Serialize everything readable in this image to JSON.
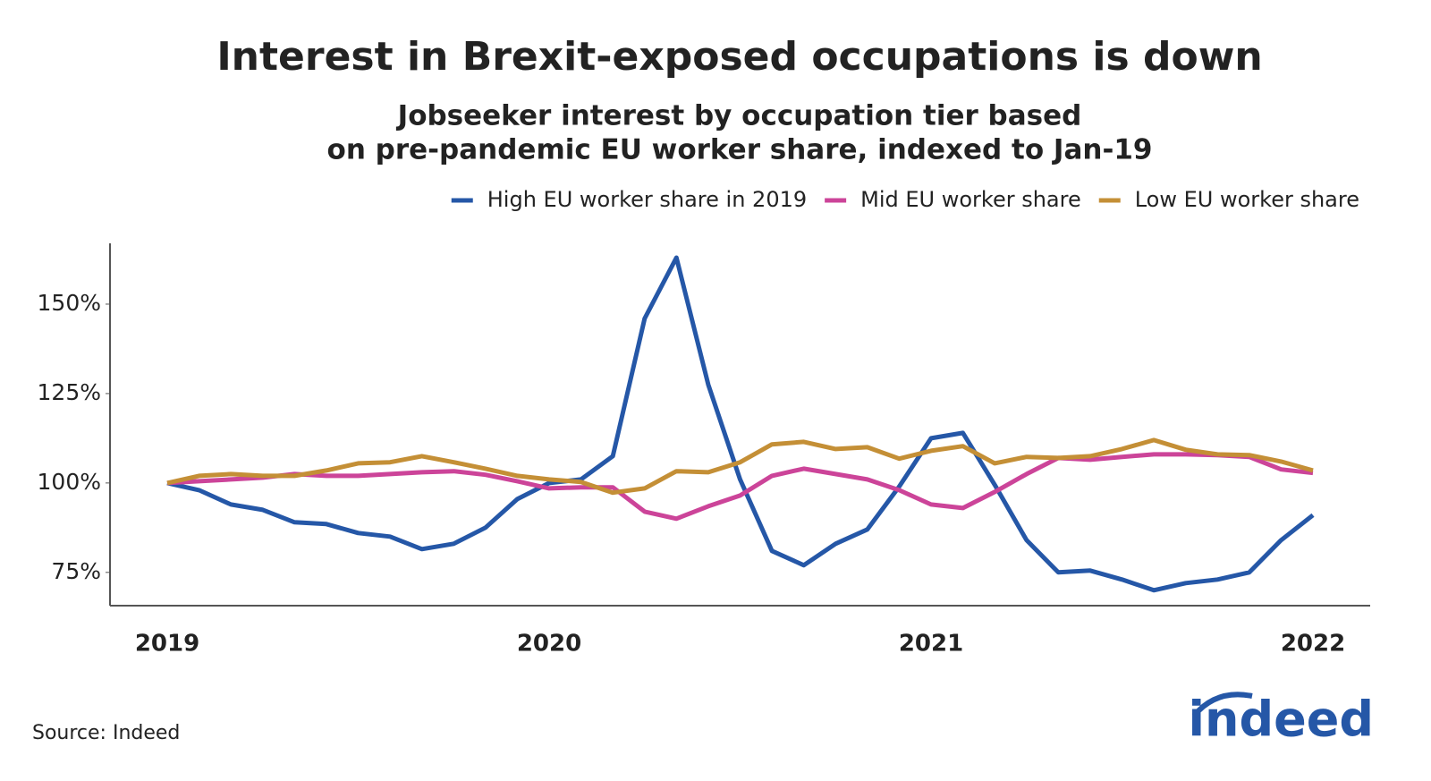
{
  "chart_data": {
    "type": "line",
    "title": "Interest in Brexit-exposed occupations is down",
    "subtitle": [
      "Jobseeker interest by occupation tier based",
      "on pre-pandemic EU worker share, indexed to Jan-19"
    ],
    "categories": [
      "2019",
      null,
      null,
      null,
      null,
      null,
      null,
      null,
      null,
      null,
      null,
      null,
      "2020",
      null,
      null,
      null,
      null,
      null,
      null,
      null,
      null,
      null,
      null,
      null,
      "2021",
      null,
      null,
      null,
      null,
      null,
      null,
      null,
      null,
      null,
      null,
      null,
      "2022"
    ],
    "series": [
      {
        "name": "High EU worker share in 2019",
        "color": "#2557a7",
        "values": [
          100,
          98,
          94,
          92.5,
          89,
          88.5,
          86,
          85,
          81.5,
          83,
          87.5,
          95.5,
          100,
          101,
          107.5,
          146,
          163,
          127.5,
          101,
          81,
          77,
          83,
          87,
          99,
          112.5,
          114,
          99.5,
          84,
          75,
          75.5,
          73,
          70,
          72,
          73,
          75,
          84,
          91
        ]
      },
      {
        "name": "Mid EU worker share",
        "color": "#cc4499",
        "values": [
          100,
          100.5,
          101,
          101.5,
          102.5,
          102,
          102,
          102.5,
          103,
          103.3,
          102.3,
          100.5,
          98.5,
          98.8,
          98.8,
          92,
          90,
          93.5,
          96.5,
          102,
          104,
          102.5,
          101,
          98,
          94,
          93,
          97.5,
          102.5,
          107,
          106.5,
          107.3,
          108,
          108,
          107.8,
          107.3,
          103.8,
          102.8
        ]
      },
      {
        "name": "Low EU worker share",
        "color": "#c48f36",
        "values": [
          100,
          102,
          102.5,
          102,
          102,
          103.5,
          105.5,
          105.8,
          107.5,
          105.8,
          104,
          102,
          101,
          100.3,
          97.3,
          98.5,
          103.3,
          103,
          105.8,
          110.8,
          111.5,
          109.5,
          110,
          106.8,
          109,
          110.3,
          105.5,
          107.3,
          107,
          107.5,
          109.5,
          112,
          109.3,
          108,
          107.8,
          106,
          103.5
        ]
      }
    ],
    "ylim": [
      65.7,
      167
    ],
    "yticks": [
      {
        "value": 75,
        "label": "75%"
      },
      {
        "value": 100,
        "label": "100%"
      },
      {
        "value": 125,
        "label": "125%"
      },
      {
        "value": 150,
        "label": "150%"
      }
    ],
    "grid": false,
    "legend": "top-right",
    "source": "Source: Indeed",
    "logo": "indeed"
  }
}
